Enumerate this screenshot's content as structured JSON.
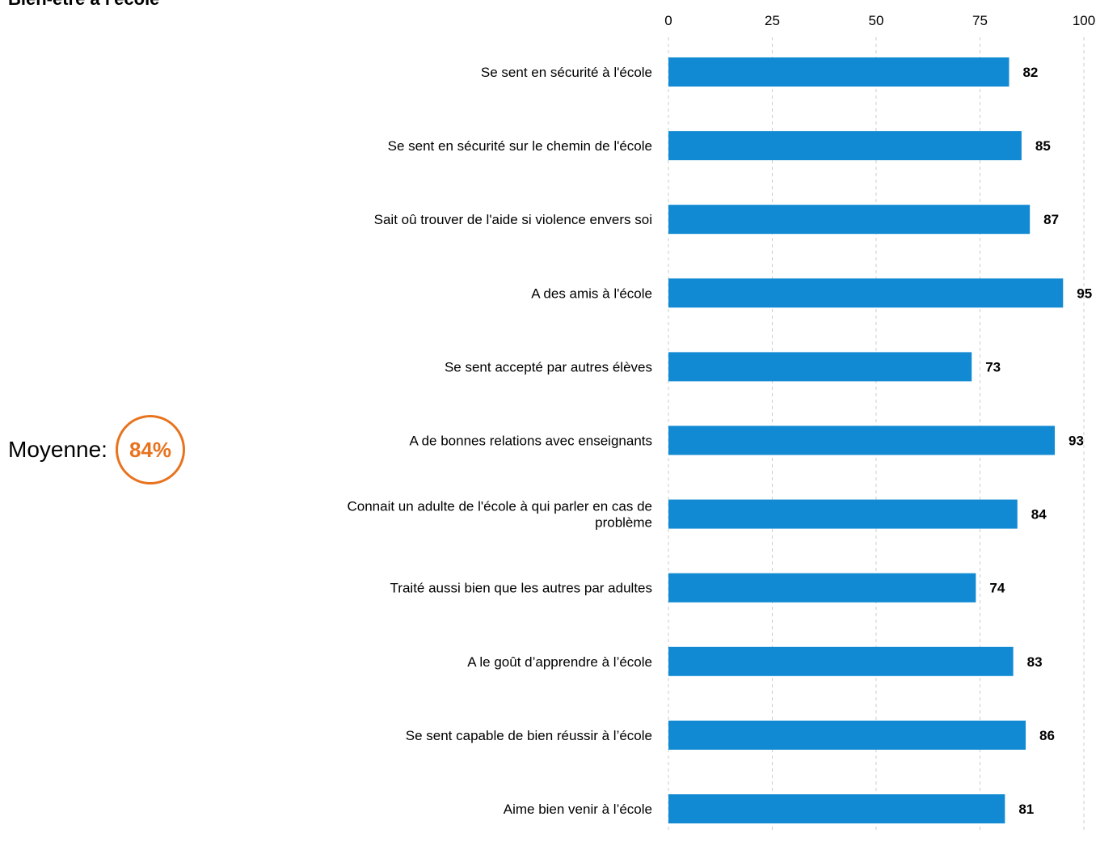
{
  "page": {
    "title": "Bien-être à l'école",
    "average_label": "Moyenne:",
    "average_value": "84%",
    "accent_color": "#e8731e",
    "bar_color": "#128ad3"
  },
  "chart_data": {
    "type": "bar",
    "orientation": "horizontal",
    "title": "Bien-être à l'école",
    "xlabel": "",
    "ylabel": "",
    "xlim": [
      0,
      100
    ],
    "ticks": [
      0,
      25,
      50,
      75,
      100
    ],
    "tick_labels": [
      "0",
      "25",
      "50",
      "75",
      "100"
    ],
    "grid": "vertical dashed",
    "axis_position": "top",
    "categories": [
      [
        "Se sent en sécurité à l'école"
      ],
      [
        "Se sent en sécurité sur le chemin de l'école"
      ],
      [
        "Sait oû trouver de l'aide si violence envers soi"
      ],
      [
        "A des amis à l'école"
      ],
      [
        "Se sent accepté par autres élèves"
      ],
      [
        "A de bonnes relations avec enseignants"
      ],
      [
        "Connait un adulte de l'école à qui parler en cas de",
        "problème"
      ],
      [
        "Traité aussi bien que les autres par adultes"
      ],
      [
        "A le goût d’apprendre à l’école"
      ],
      [
        "Se sent capable de bien réussir à l’école"
      ],
      [
        "Aime bien venir à l’école"
      ]
    ],
    "values": [
      82,
      85,
      87,
      95,
      73,
      93,
      84,
      74,
      83,
      86,
      81
    ],
    "value_labels": [
      "82",
      "85",
      "87",
      "95",
      "73",
      "93",
      "84",
      "74",
      "83",
      "86",
      "81"
    ]
  }
}
